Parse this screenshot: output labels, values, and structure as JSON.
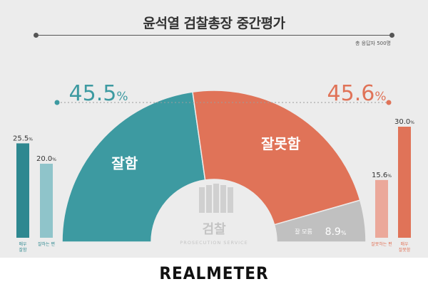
{
  "title": "윤석열 검찰총장 중간평가",
  "respondents_note": "총 응답자 500명",
  "footer_brand": "REALMETER",
  "logo": {
    "name": "검찰",
    "sub": "PROSECUTION SERVICE"
  },
  "colors": {
    "approve": "#3d9aa1",
    "approve_dark": "#2e8890",
    "approve_light": "#8fc4ca",
    "disapprove": "#e07358",
    "disapprove_light": "#eba89a",
    "unsure": "#c0c0c0",
    "dot_line": "#9d9d9d",
    "text_dark": "#333333"
  },
  "chart_data": [
    {
      "type": "pie",
      "shape": "semicircle donut",
      "categories": [
        "잘함",
        "잘못함",
        "잘 모름"
      ],
      "values": [
        45.5,
        45.6,
        8.9
      ],
      "value_labels": [
        "45.5%",
        "45.6%",
        "8.9%"
      ],
      "unit": "%"
    },
    {
      "type": "bar",
      "side": "left",
      "categories": [
        "매우 잘함",
        "잘하는 편"
      ],
      "values": [
        25.5,
        20.0
      ],
      "value_labels": [
        "25.5%",
        "20.0%"
      ],
      "ylim": [
        0,
        30
      ]
    },
    {
      "type": "bar",
      "side": "right",
      "categories": [
        "잘못하는 편",
        "매우 잘못함"
      ],
      "values": [
        15.6,
        30.0
      ],
      "value_labels": [
        "15.6%",
        "30.0%"
      ],
      "ylim": [
        0,
        30
      ]
    }
  ]
}
